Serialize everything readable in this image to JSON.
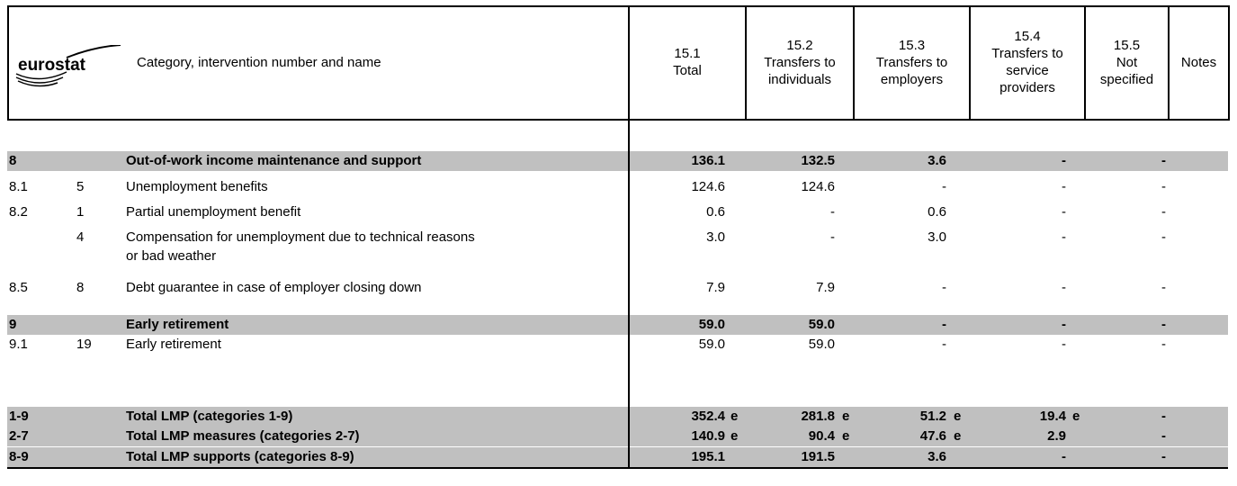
{
  "header": {
    "logo": "eurostat",
    "title": "Category, intervention number and name",
    "columns": [
      [
        "15.1",
        "Total"
      ],
      [
        "15.2",
        "Transfers to",
        "individuals"
      ],
      [
        "15.3",
        "Transfers to",
        "employers"
      ],
      [
        "15.4",
        "Transfers to",
        "service",
        "providers"
      ],
      [
        "15.5",
        "Not",
        "specified"
      ],
      [
        "Notes"
      ]
    ]
  },
  "table": {
    "rows": [
      {
        "code": "8",
        "number": null,
        "name": [
          "Out-of-work income maintenance and support"
        ],
        "values": [
          "136.1",
          "132.5",
          "3.6",
          "-",
          "-"
        ],
        "flags": [
          null,
          null,
          null,
          null,
          null
        ],
        "bold": true
      },
      {
        "code": "8.1",
        "number": "5",
        "name": [
          "Unemployment benefits"
        ],
        "values": [
          "124.6",
          "124.6",
          "-",
          "-",
          "-"
        ],
        "flags": [
          null,
          null,
          null,
          null,
          null
        ],
        "bold": false
      },
      {
        "code": "8.2",
        "number": "1",
        "name": [
          "Partial unemployment benefit"
        ],
        "values": [
          "0.6",
          "-",
          "0.6",
          "-",
          "-"
        ],
        "flags": [
          null,
          null,
          null,
          null,
          null
        ],
        "bold": false
      },
      {
        "code": null,
        "number": "4",
        "name": [
          "Compensation for unemployment due to technical reasons",
          "or bad weather"
        ],
        "values": [
          "3.0",
          "-",
          "3.0",
          "-",
          "-"
        ],
        "flags": [
          null,
          null,
          null,
          null,
          null
        ],
        "bold": false
      },
      {
        "code": "8.5",
        "number": "8",
        "name": [
          "Debt guarantee in case of employer closing down"
        ],
        "values": [
          "7.9",
          "7.9",
          "-",
          "-",
          "-"
        ],
        "flags": [
          null,
          null,
          null,
          null,
          null
        ],
        "bold": false
      },
      {
        "code": "9",
        "number": null,
        "name": [
          "Early retirement"
        ],
        "values": [
          "59.0",
          "59.0",
          "-",
          "-",
          "-"
        ],
        "flags": [
          null,
          null,
          null,
          null,
          null
        ],
        "bold": true
      },
      {
        "code": "9.1",
        "number": "19",
        "name": [
          "Early retirement"
        ],
        "values": [
          "59.0",
          "59.0",
          "-",
          "-",
          "-"
        ],
        "flags": [
          null,
          null,
          null,
          null,
          null
        ],
        "bold": false
      },
      {
        "code": "1-9",
        "number": null,
        "name": [
          "Total LMP (categories 1-9)"
        ],
        "values": [
          "352.4",
          "281.8",
          "51.2",
          "19.4",
          "-"
        ],
        "flags": [
          "e",
          "e",
          "e",
          "e",
          null
        ],
        "bold": true
      },
      {
        "code": "2-7",
        "number": null,
        "name": [
          "Total LMP measures (categories 2-7)"
        ],
        "values": [
          "140.9",
          "90.4",
          "47.6",
          "2.9",
          "-"
        ],
        "flags": [
          "e",
          "e",
          "e",
          null,
          null
        ],
        "bold": true
      },
      {
        "code": "8-9",
        "number": null,
        "name": [
          "Total LMP supports (categories 8-9)"
        ],
        "values": [
          "195.1",
          "191.5",
          "3.6",
          "-",
          "-"
        ],
        "flags": [
          null,
          null,
          null,
          null,
          null
        ],
        "bold": true
      }
    ]
  }
}
